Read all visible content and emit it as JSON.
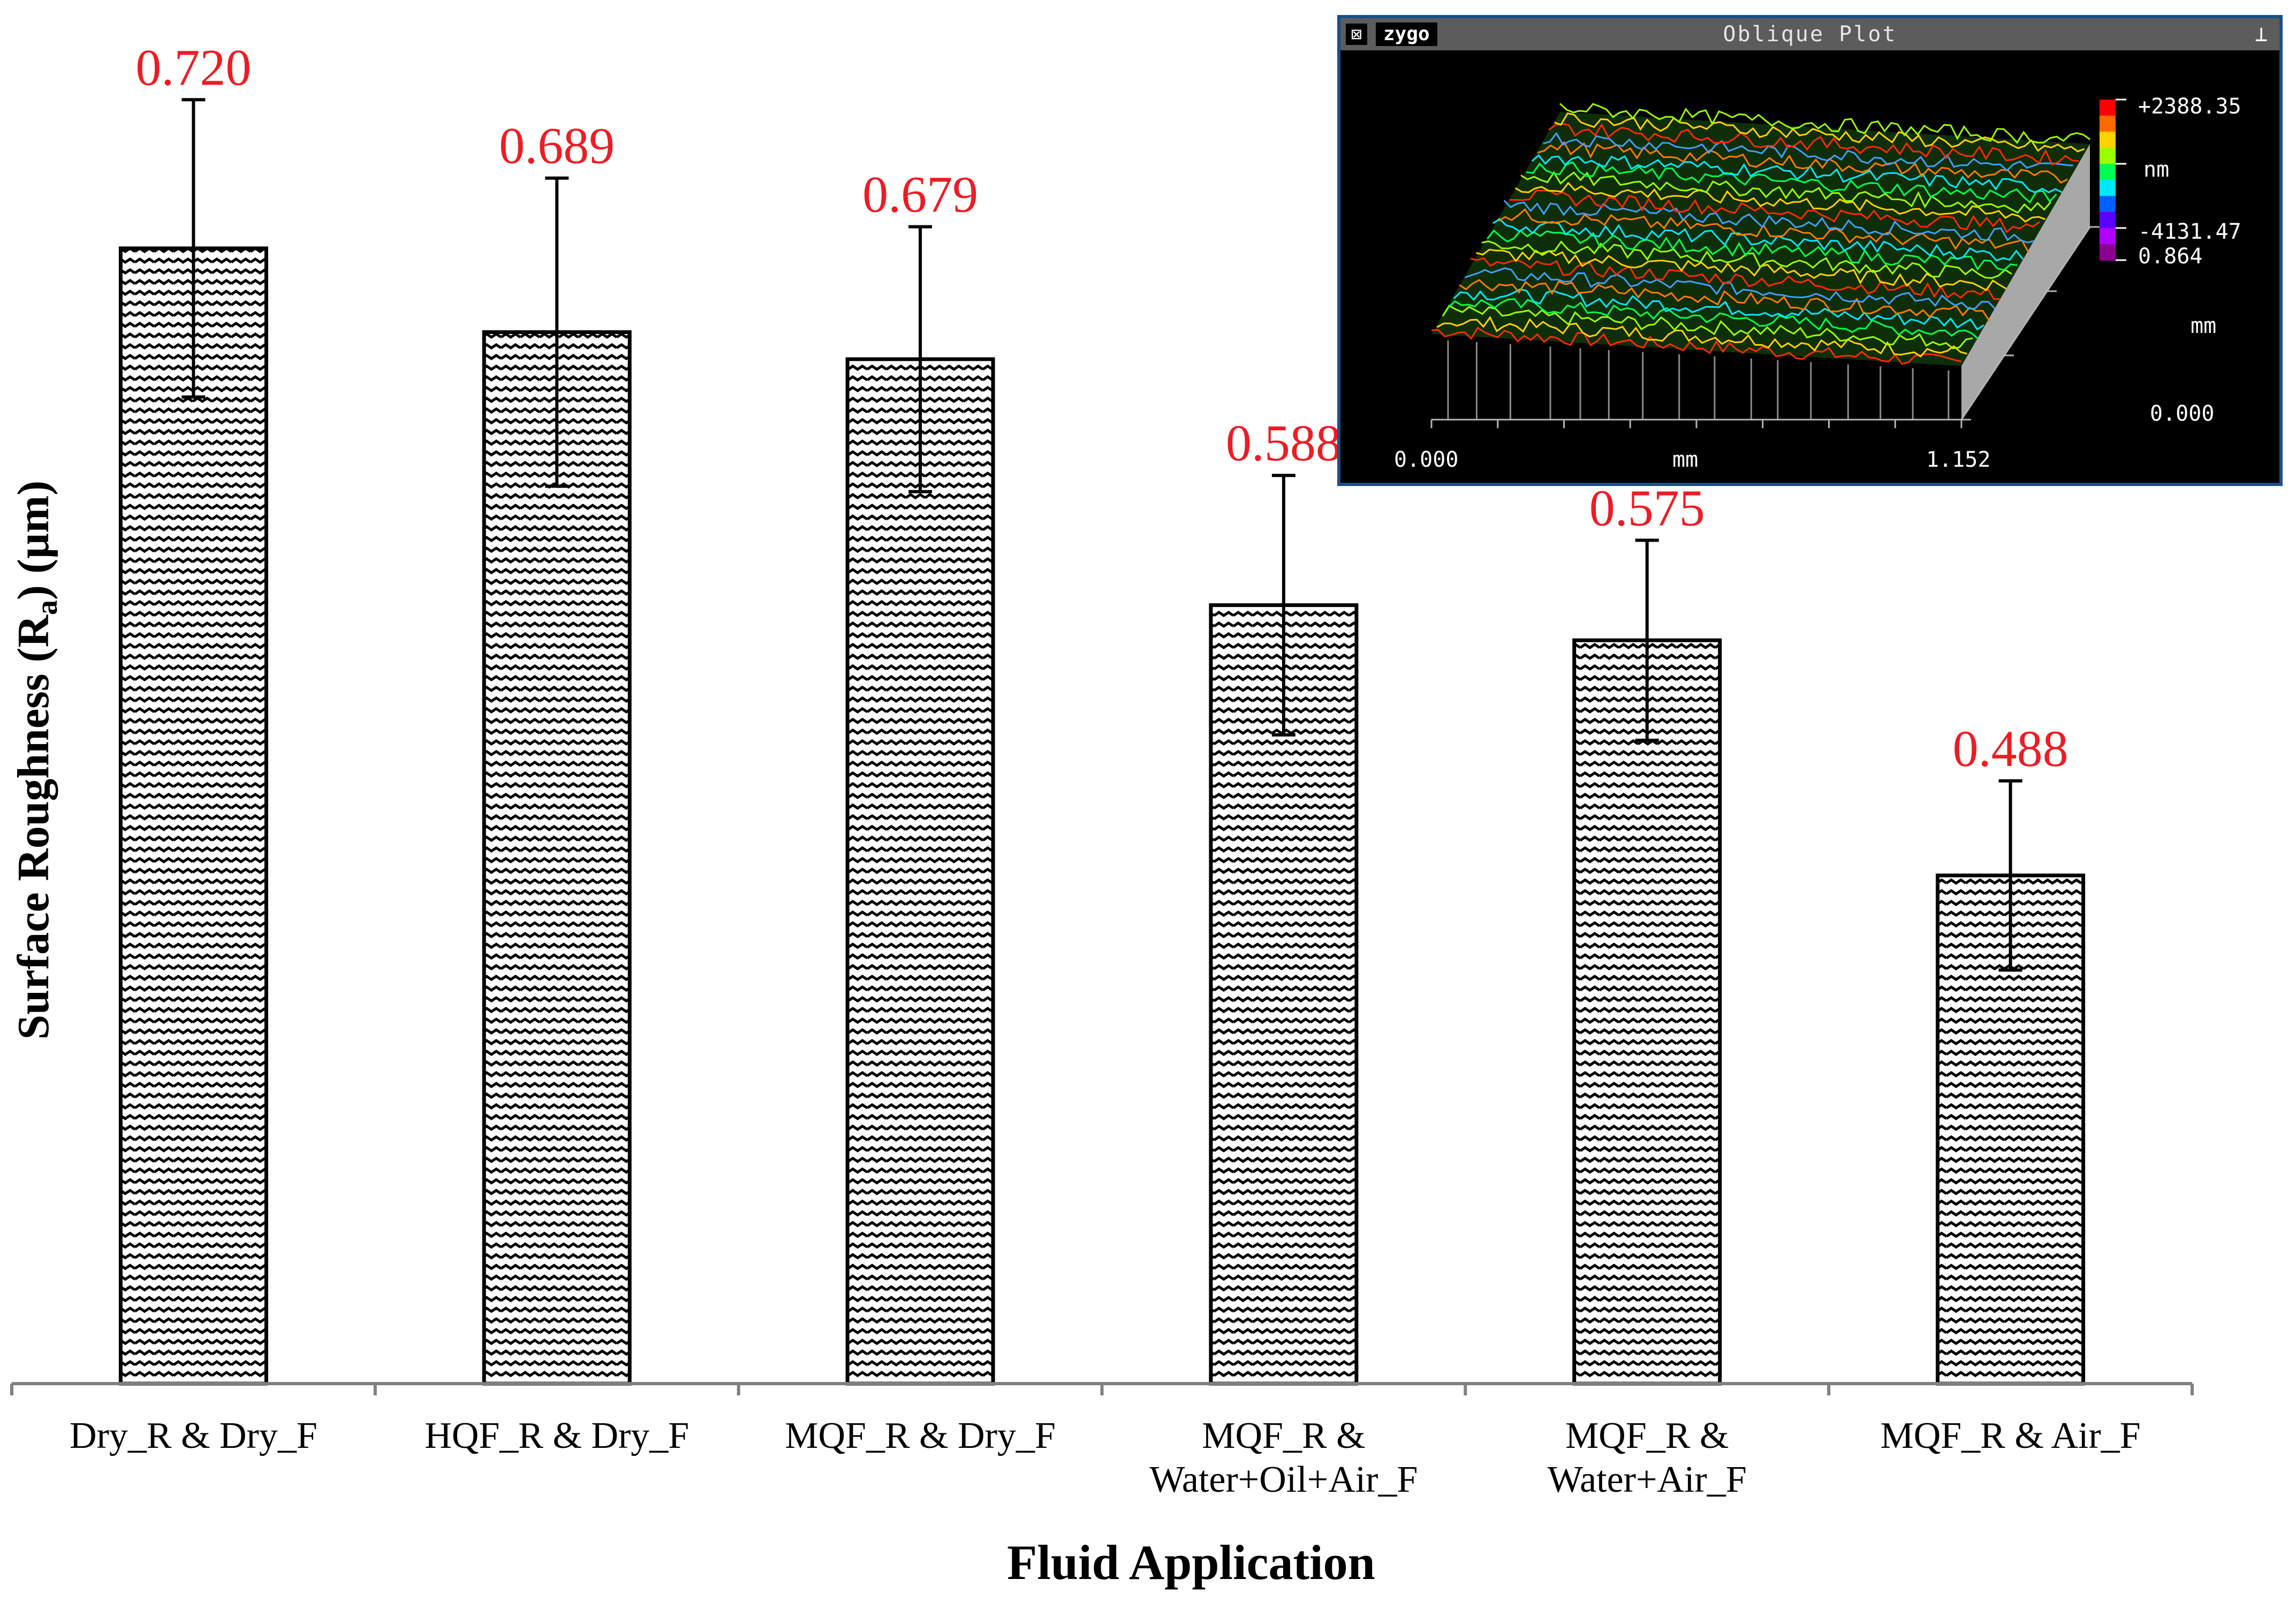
{
  "chart_data": {
    "type": "bar",
    "xlabel": "Fluid Application",
    "ylabel_main": "Surface Roughness (R",
    "ylabel_sub": "a",
    "ylabel_tail": ") (µm)",
    "categories": [
      [
        "Dry_R & Dry_F"
      ],
      [
        "HQF_R & Dry_F"
      ],
      [
        "MQF_R & Dry_F"
      ],
      [
        "MQF_R &",
        "Water+Oil+Air_F"
      ],
      [
        "MQF_R &",
        "Water+Air_F"
      ],
      [
        "MQF_R & Air_F"
      ]
    ],
    "values": [
      0.72,
      0.689,
      0.679,
      0.588,
      0.575,
      0.488
    ],
    "value_labels": [
      "0.720",
      "0.689",
      "0.679",
      "0.588",
      "0.575",
      "0.488"
    ],
    "error": [
      0.055,
      0.057,
      0.049,
      0.048,
      0.037,
      0.035
    ],
    "ylim": [
      0.3,
      0.8
    ],
    "grid": false,
    "colors": {
      "bar_fill": "#ffffff",
      "bar_edge": "#000000",
      "label": "#ee1c24",
      "axis": "#808080"
    }
  },
  "inset": {
    "title": "Oblique Plot",
    "logo": "zygo",
    "close_icon": "close-box-icon",
    "pin_icon": "pin-icon",
    "colorbar_max": "+2388.35",
    "colorbar_unit": "nm",
    "colorbar_min": "-4131.47",
    "y_max": "0.864",
    "y_unit": "mm",
    "y_min": "0.000",
    "x_min": "0.000",
    "x_unit": "mm",
    "x_max": "1.152",
    "colorbar_colors": [
      "#ff0000",
      "#ff6a00",
      "#ffd200",
      "#9bff00",
      "#00ff50",
      "#00e8ff",
      "#0060ff",
      "#5a00ff",
      "#b000ff",
      "#8a0090"
    ]
  }
}
